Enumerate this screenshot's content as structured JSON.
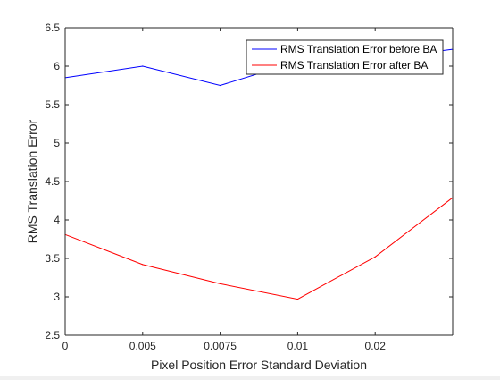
{
  "chart_data": {
    "type": "line",
    "title": "",
    "xlabel": "Pixel Position Error Standard Deviation",
    "ylabel": "RMS Translation Error",
    "categories": [
      "0",
      "0.005",
      "0.0075",
      "0.01",
      "0.02",
      ""
    ],
    "ylim": [
      2.5,
      6.5
    ],
    "yticks": [
      "2.5",
      "3",
      "3.5",
      "4",
      "4.5",
      "5",
      "5.5",
      "6",
      "6.5"
    ],
    "grid": false,
    "legend_position": "top-right",
    "series": [
      {
        "name": "RMS Translation Error before BA",
        "color": "#0000ff",
        "values": [
          5.85,
          6.0,
          5.75,
          6.06,
          6.09,
          6.22
        ]
      },
      {
        "name": "RMS Translation Error after BA",
        "color": "#ff0000",
        "values": [
          3.81,
          3.42,
          3.17,
          2.97,
          3.52,
          4.29
        ]
      }
    ]
  }
}
